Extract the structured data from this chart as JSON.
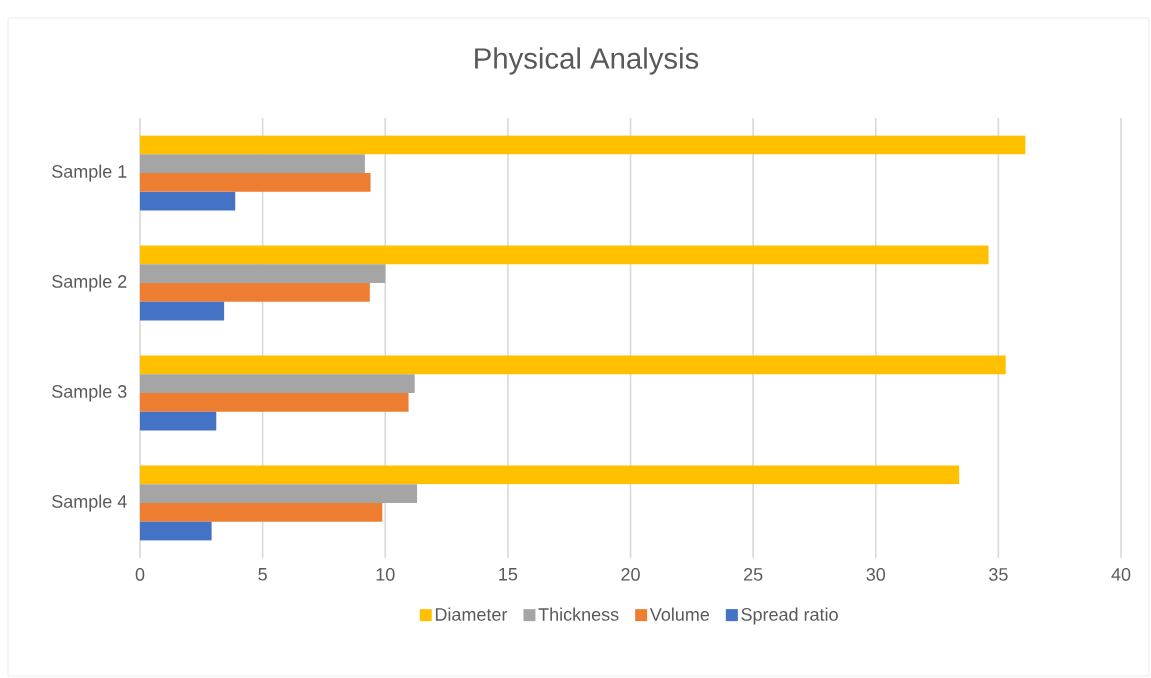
{
  "chart_data": {
    "type": "bar",
    "orientation": "horizontal",
    "title": "Physical Analysis",
    "categories": [
      "Sample 1",
      "Sample 2",
      "Sample 3",
      "Sample 4"
    ],
    "series": [
      {
        "name": "Diameter",
        "color": "#ffc000",
        "values": [
          36.1,
          34.6,
          35.3,
          33.4
        ]
      },
      {
        "name": "Thickness",
        "color": "#a5a5a5",
        "values": [
          9.17,
          10.0,
          11.2,
          11.3
        ]
      },
      {
        "name": "Volume",
        "color": "#ed7d31",
        "values": [
          9.4,
          9.37,
          10.95,
          9.88
        ]
      },
      {
        "name": "Spread ratio",
        "color": "#4472c4",
        "values": [
          3.89,
          3.43,
          3.11,
          2.92
        ]
      }
    ],
    "xlim": [
      0,
      40
    ],
    "xticks": [
      0,
      5,
      10,
      15,
      20,
      25,
      30,
      35,
      40
    ],
    "grid": "x",
    "legend": "bottom"
  }
}
